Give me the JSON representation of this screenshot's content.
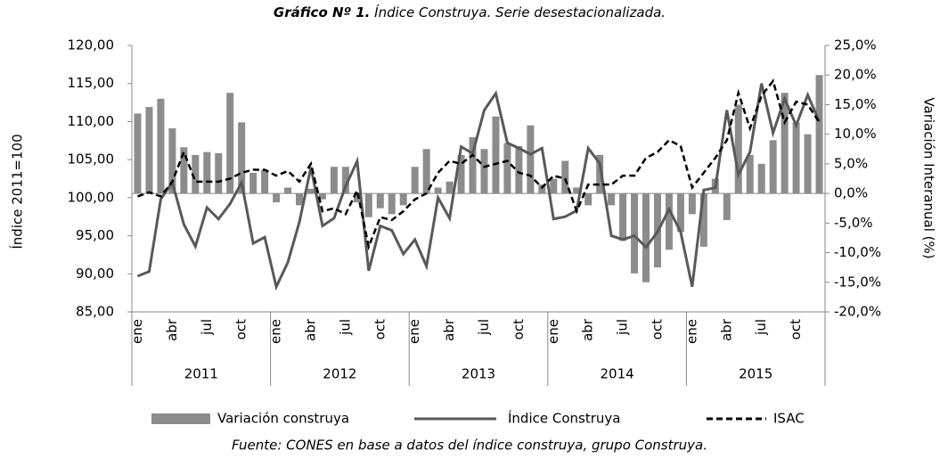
{
  "chart_data": {
    "type": "bar-line",
    "title_bold": "Gráfico Nº 1.",
    "title": "Índice Construya. Serie desestacionalizada.",
    "ylabel": "Índice 2011=100",
    "y2label": "Variación Interanual (%)",
    "source": "Fuente: CONES en base a datos del índice construya, grupo Construya.",
    "categories": [
      "ene",
      null,
      null,
      "abr",
      null,
      null,
      "jul",
      null,
      null,
      "oct",
      null,
      null,
      "ene",
      null,
      null,
      "abr",
      null,
      null,
      "jul",
      null,
      null,
      "oct",
      null,
      null,
      "ene",
      null,
      null,
      "abr",
      null,
      null,
      "jul",
      null,
      null,
      "oct",
      null,
      null,
      "ene",
      null,
      null,
      "abr",
      null,
      null,
      "jul",
      null,
      null,
      "oct",
      null,
      null,
      "ene",
      null,
      null,
      "abr",
      null,
      null,
      "jul",
      null,
      null,
      "oct",
      null,
      null
    ],
    "years": [
      "2011",
      "2012",
      "2013",
      "2014",
      "2015"
    ],
    "ylim": [
      85,
      120
    ],
    "yticks": [
      {
        "value": 85,
        "label": "85,00"
      },
      {
        "value": 90,
        "label": "90,00"
      },
      {
        "value": 95,
        "label": "95,00"
      },
      {
        "value": 100,
        "label": "100,00"
      },
      {
        "value": 105,
        "label": "105,00"
      },
      {
        "value": 110,
        "label": "110,00"
      },
      {
        "value": 115,
        "label": "115,00"
      },
      {
        "value": 120,
        "label": "120,00"
      }
    ],
    "y2lim": [
      -20,
      25
    ],
    "y2ticks": [
      {
        "value": -20,
        "label": "-20,0%"
      },
      {
        "value": -15,
        "label": "-15,0%"
      },
      {
        "value": -10,
        "label": "-10,0%"
      },
      {
        "value": -5,
        "label": "-5,0%"
      },
      {
        "value": 0,
        "label": "0,0%"
      },
      {
        "value": 5,
        "label": "5,0%"
      },
      {
        "value": 10,
        "label": "10,0%"
      },
      {
        "value": 15,
        "label": "15,0%"
      },
      {
        "value": 20,
        "label": "20,0%"
      },
      {
        "value": 25,
        "label": "25,0%"
      }
    ],
    "legend": "bottom",
    "series": [
      {
        "name": "Variación construya",
        "kind": "bar",
        "axis": "y2",
        "color": "#8c8c8c",
        "values": [
          13.5,
          14.6,
          16.0,
          11.0,
          7.8,
          6.5,
          7.0,
          6.8,
          17.0,
          12.0,
          3.5,
          4.0,
          -1.5,
          1.0,
          -2.0,
          0.8,
          -1.0,
          4.5,
          4.5,
          -1.5,
          -4.0,
          -2.5,
          -3.5,
          -2.0,
          4.5,
          7.5,
          1.0,
          2.0,
          6.5,
          9.5,
          7.5,
          13.0,
          8.5,
          8.0,
          11.5,
          1.5,
          2.5,
          5.5,
          1.0,
          -2.0,
          6.5,
          -2.0,
          -8.0,
          -13.5,
          -15.0,
          -12.5,
          -9.5,
          -6.5,
          -3.5,
          -9.0,
          2.5,
          -4.5,
          15.0,
          6.5,
          5.0,
          9.0,
          17.0,
          12.0,
          10.0,
          20.0
        ]
      },
      {
        "name": "Índice Construya",
        "kind": "line",
        "axis": "y",
        "color": "#595959",
        "values": [
          89.7,
          90.3,
          99.8,
          102.0,
          96.5,
          93.6,
          98.7,
          97.2,
          99.2,
          102.0,
          94.0,
          94.8,
          88.3,
          91.5,
          96.8,
          104.0,
          96.3,
          97.3,
          101.5,
          104.8,
          90.4,
          96.3,
          95.7,
          92.6,
          94.5,
          91.0,
          100.0,
          97.3,
          106.7,
          105.8,
          111.5,
          113.7,
          107.2,
          106.5,
          105.7,
          106.5,
          97.2,
          97.5,
          98.3,
          106.5,
          104.5,
          95.0,
          94.5,
          95.0,
          93.5,
          95.5,
          98.5,
          95.5,
          88.3,
          101.0,
          101.3,
          111.5,
          103.0,
          106.0,
          115.0,
          108.5,
          113.0,
          109.5,
          113.5,
          110.0
        ]
      },
      {
        "name": "ISAC",
        "kind": "dashed",
        "axis": "y2",
        "color": "#000000",
        "values": [
          -0.5,
          0.2,
          -0.5,
          2.0,
          7.0,
          2.0,
          2.0,
          2.0,
          2.5,
          3.5,
          4.0,
          4.0,
          3.0,
          3.8,
          2.0,
          5.0,
          -3.0,
          -2.5,
          -3.5,
          0.5,
          -9.0,
          -4.0,
          -4.5,
          -3.0,
          -1.0,
          0.0,
          3.5,
          5.5,
          5.0,
          6.5,
          4.5,
          5.0,
          5.5,
          3.5,
          3.0,
          1.0,
          3.0,
          2.5,
          -3.0,
          1.5,
          1.5,
          1.5,
          3.0,
          3.0,
          6.0,
          7.0,
          9.0,
          8.0,
          1.0,
          3.5,
          6.0,
          9.0,
          17.0,
          11.0,
          16.5,
          19.0,
          12.0,
          15.5,
          15.0,
          12.0
        ]
      }
    ]
  }
}
